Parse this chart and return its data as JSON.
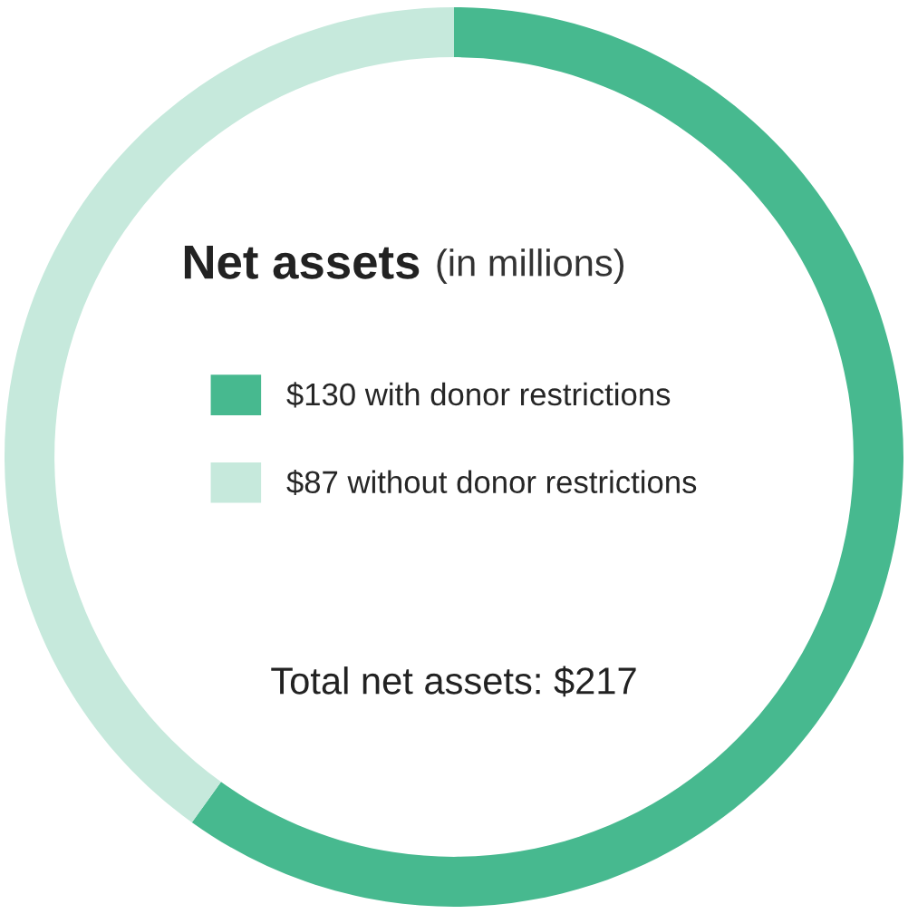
{
  "chart_data": {
    "type": "donut",
    "title": "Net assets",
    "subtitle": "(in millions)",
    "categories": [
      "$130 with donor restrictions",
      "$87 without donor restrictions"
    ],
    "values": [
      130,
      87
    ],
    "colors": [
      "#47b98f",
      "#c6e9dc"
    ],
    "legend": "center",
    "annotations": [
      "Total net assets: $217"
    ]
  }
}
